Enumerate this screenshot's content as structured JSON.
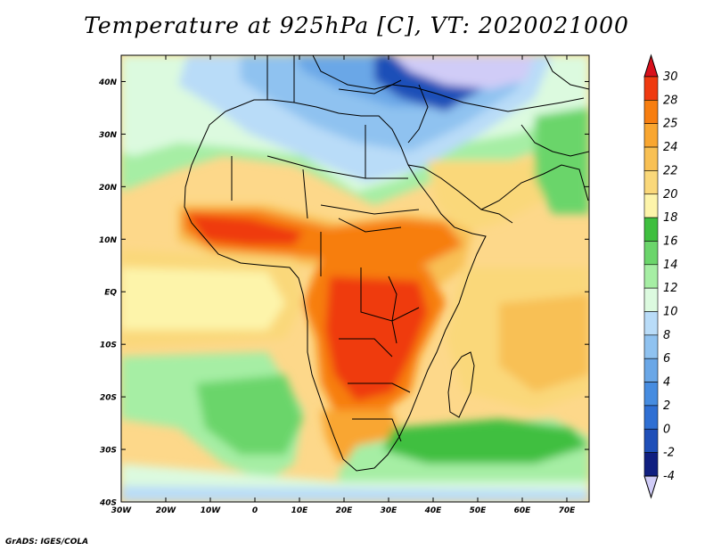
{
  "title": "Temperature at 925hPa [C], VT: 2020021000",
  "credit": "GrADS: IGES/COLA",
  "map": {
    "lat_ticks": [
      "40N",
      "30N",
      "20N",
      "10N",
      "EQ",
      "10S",
      "20S",
      "30S",
      "40S"
    ],
    "lon_ticks": [
      "30W",
      "20W",
      "10W",
      "0",
      "10E",
      "20E",
      "30E",
      "40E",
      "50E",
      "60E",
      "70E"
    ],
    "lon_range": [
      -30,
      75
    ],
    "lat_range": [
      -40,
      45
    ]
  },
  "colorbar": {
    "labels": [
      "30",
      "28",
      "25",
      "24",
      "22",
      "20",
      "18",
      "16",
      "14",
      "12",
      "10",
      "8",
      "6",
      "4",
      "2",
      "0",
      "-2",
      "-4"
    ],
    "colors": [
      "#d8101c",
      "#ef3a10",
      "#f77e10",
      "#f9a630",
      "#f8c054",
      "#fad87a",
      "#fdf4aa",
      "#3fbf3f",
      "#6bd56b",
      "#a6eea4",
      "#dcfadf",
      "#b9dcf8",
      "#8fc2f0",
      "#6aa7e7",
      "#468ce0",
      "#2f6fd3",
      "#1f4fb8",
      "#101f80",
      "#d0ccf7"
    ]
  }
}
